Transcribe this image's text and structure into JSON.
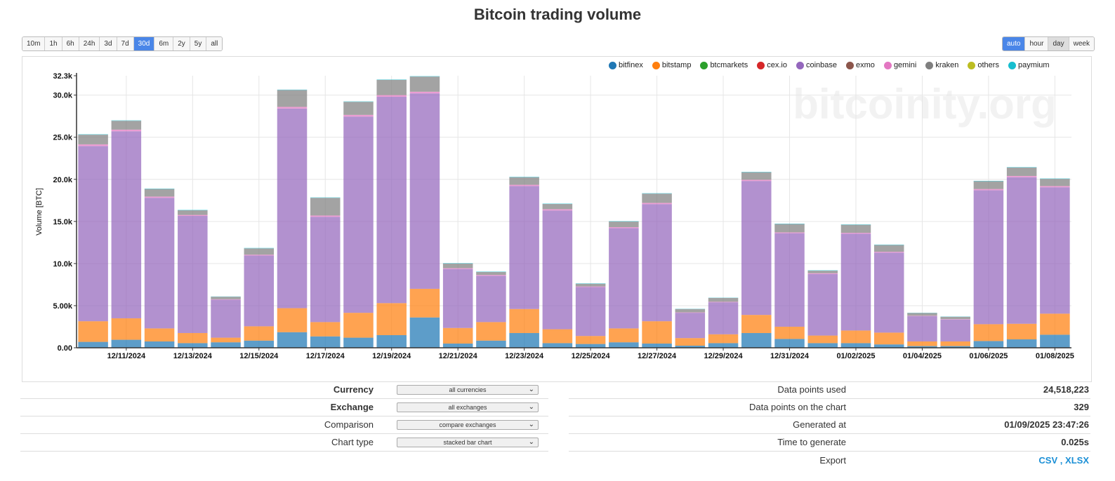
{
  "page_title": "Bitcoin trading volume",
  "time_ranges": [
    "10m",
    "1h",
    "6h",
    "24h",
    "3d",
    "7d",
    "30d",
    "6m",
    "2y",
    "5y",
    "all"
  ],
  "time_range_active": "30d",
  "resolutions": [
    "auto",
    "hour",
    "day",
    "week"
  ],
  "resolution_active": "auto",
  "resolution_soft": "day",
  "watermark": "bitcoinity.org",
  "colors": {
    "bitfinex": "#1f77b4",
    "bitstamp": "#ff7f0e",
    "btcmarkets": "#2ca02c",
    "cex.io": "#d62728",
    "coinbase": "#9467bd",
    "exmo": "#8c564b",
    "gemini": "#e377c2",
    "kraken": "#7f7f7f",
    "others": "#bcbd22",
    "paymium": "#17becf"
  },
  "chart_data": {
    "type": "bar",
    "stacked": true,
    "title": "Bitcoin trading volume",
    "xlabel": "",
    "ylabel": "Volume [BTC]",
    "ylim": [
      0,
      32300
    ],
    "y_ticks": [
      {
        "value": 0,
        "label": "0.00"
      },
      {
        "value": 5000,
        "label": "5.00k"
      },
      {
        "value": 10000,
        "label": "10.0k"
      },
      {
        "value": 15000,
        "label": "15.0k"
      },
      {
        "value": 20000,
        "label": "20.0k"
      },
      {
        "value": 25000,
        "label": "25.0k"
      },
      {
        "value": 30000,
        "label": "30.0k"
      },
      {
        "value": 32300,
        "label": "32.3k"
      }
    ],
    "x_tick_labels": [
      "12/11/2024",
      "12/13/2024",
      "12/15/2024",
      "12/17/2024",
      "12/19/2024",
      "12/21/2024",
      "12/23/2024",
      "12/25/2024",
      "12/27/2024",
      "12/29/2024",
      "12/31/2024",
      "01/02/2025",
      "01/04/2025",
      "01/06/2025",
      "01/08/2025"
    ],
    "legend": [
      "bitfinex",
      "bitstamp",
      "btcmarkets",
      "cex.io",
      "coinbase",
      "exmo",
      "gemini",
      "kraken",
      "others",
      "paymium"
    ],
    "categories": [
      "12/10/2024",
      "12/11/2024",
      "12/12/2024",
      "12/13/2024",
      "12/14/2024",
      "12/15/2024",
      "12/16/2024",
      "12/17/2024",
      "12/18/2024",
      "12/19/2024",
      "12/20/2024",
      "12/21/2024",
      "12/22/2024",
      "12/23/2024",
      "12/24/2024",
      "12/25/2024",
      "12/26/2024",
      "12/27/2024",
      "12/28/2024",
      "12/29/2024",
      "12/30/2024",
      "12/31/2024",
      "01/01/2025",
      "01/02/2025",
      "01/03/2025",
      "01/04/2025",
      "01/05/2025",
      "01/06/2025",
      "01/07/2025",
      "01/08/2025"
    ],
    "series": [
      {
        "name": "bitfinex",
        "values": [
          700,
          950,
          750,
          550,
          650,
          850,
          1850,
          1350,
          1200,
          1500,
          3600,
          500,
          850,
          1750,
          550,
          450,
          650,
          500,
          250,
          550,
          1750,
          1050,
          550,
          550,
          400,
          200,
          200,
          800,
          1000,
          1550
        ]
      },
      {
        "name": "bitstamp",
        "values": [
          2450,
          2550,
          1550,
          1200,
          550,
          1700,
          2850,
          1700,
          2950,
          3800,
          3400,
          1850,
          2200,
          2850,
          1650,
          950,
          1650,
          2650,
          900,
          1050,
          2150,
          1450,
          900,
          1500,
          1400,
          550,
          550,
          2000,
          1850,
          2500
        ]
      },
      {
        "name": "coinbase",
        "values": [
          20800,
          22200,
          15500,
          13900,
          4500,
          8400,
          23700,
          12500,
          23300,
          24500,
          23200,
          7000,
          5500,
          14600,
          14100,
          5800,
          11900,
          13900,
          3000,
          3800,
          15900,
          11100,
          7300,
          11500,
          9500,
          3000,
          2600,
          15900,
          17400,
          15000
        ]
      },
      {
        "name": "gemini",
        "values": [
          200,
          200,
          150,
          120,
          60,
          100,
          200,
          150,
          200,
          200,
          200,
          100,
          100,
          150,
          150,
          80,
          120,
          150,
          50,
          60,
          150,
          100,
          100,
          100,
          100,
          50,
          50,
          150,
          150,
          150
        ]
      },
      {
        "name": "kraken",
        "values": [
          1150,
          1050,
          900,
          550,
          300,
          750,
          2000,
          2100,
          1550,
          1800,
          1800,
          550,
          350,
          900,
          620,
          320,
          660,
          1100,
          400,
          460,
          890,
          990,
          300,
          950,
          800,
          330,
          280,
          920,
          1000,
          850
        ]
      },
      {
        "name": "paymium",
        "values": [
          50,
          50,
          50,
          50,
          30,
          50,
          50,
          50,
          50,
          50,
          50,
          50,
          50,
          50,
          50,
          50,
          50,
          50,
          30,
          30,
          50,
          50,
          50,
          50,
          50,
          30,
          30,
          50,
          50,
          50
        ]
      }
    ]
  },
  "controls": [
    {
      "label": "Currency",
      "value": "all currencies",
      "bold": true
    },
    {
      "label": "Exchange",
      "value": "all exchanges",
      "bold": true
    },
    {
      "label": "Comparison",
      "value": "compare exchanges",
      "bold": false
    },
    {
      "label": "Chart type",
      "value": "stacked bar chart",
      "bold": false
    }
  ],
  "stats": [
    {
      "label": "Data points used",
      "value": "24,518,223"
    },
    {
      "label": "Data points on the chart",
      "value": "329"
    },
    {
      "label": "Generated at",
      "value": "01/09/2025 23:47:26"
    },
    {
      "label": "Time to generate",
      "value": "0.025s"
    }
  ],
  "export": {
    "label": "Export",
    "csv": "CSV",
    "separator": ",",
    "xlsx": "XLSX"
  }
}
